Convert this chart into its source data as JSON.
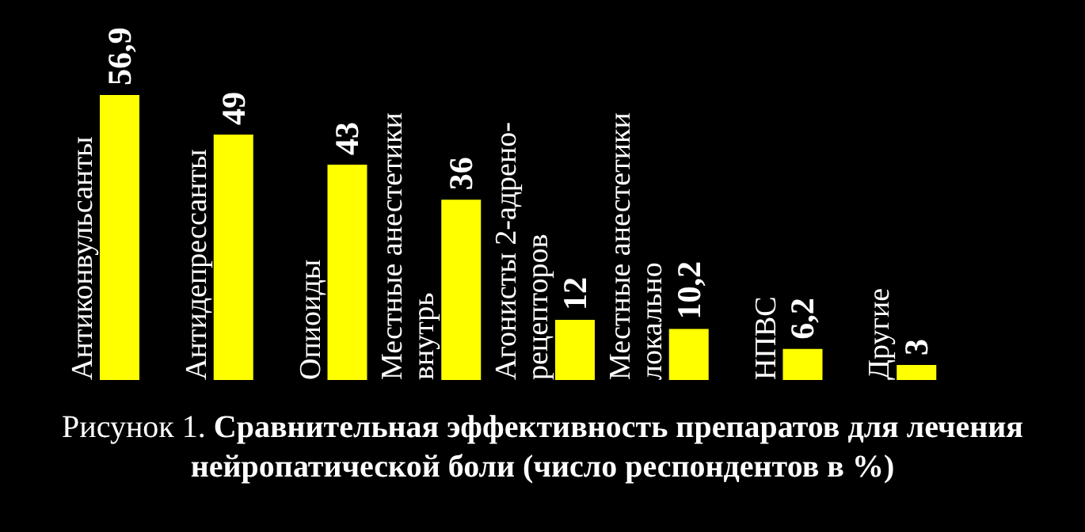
{
  "chart_data": {
    "type": "bar",
    "title": "Рисунок 1. Сравнительная эффективность препаратов для лечения нейропатической боли (число респондентов в %)",
    "categories": [
      "Антиконвульсанты",
      "Антидепрессанты",
      "Опиоиды",
      "Местные анестетики внутрь",
      "Агонисты 2-адрено-рецепторов",
      "Местные анестетики локально",
      "НПВС",
      "Другие"
    ],
    "values": [
      56.9,
      49,
      43,
      36,
      12,
      10.2,
      6.2,
      3
    ],
    "value_labels": [
      "56,9",
      "49",
      "43",
      "36",
      "12",
      "10,2",
      "6,2",
      "3"
    ],
    "color": "#ffff00"
  }
}
